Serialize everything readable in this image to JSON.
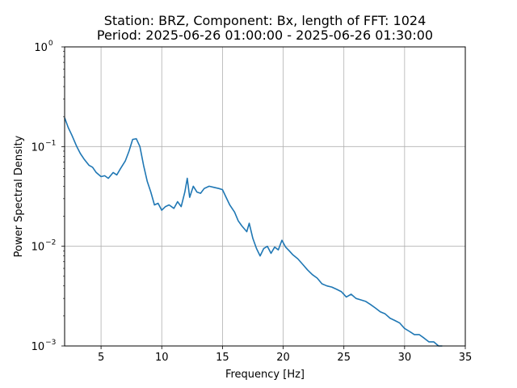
{
  "chart_data": {
    "type": "line",
    "title_line1": "Station: BRZ, Component: Bx, length of FFT: 1024",
    "title_line2": "Period: 2025-06-26 01:00:00 - 2025-06-26 01:30:00",
    "xlabel": "Frequency [Hz]",
    "ylabel": "Power Spectral Density",
    "xlim": [
      2,
      35
    ],
    "ylim": [
      0.001,
      1
    ],
    "yscale": "log",
    "grid": true,
    "x_ticks": [
      5,
      10,
      15,
      20,
      25,
      30,
      35
    ],
    "x_tick_labels": [
      "5",
      "10",
      "15",
      "20",
      "25",
      "30",
      "35"
    ],
    "y_ticks": [
      0.001,
      0.01,
      0.1,
      1
    ],
    "y_tick_bases": [
      "10",
      "10",
      "10",
      "10"
    ],
    "y_tick_exponents": [
      "−3",
      "−2",
      "−1",
      "0"
    ],
    "line_color": "#1f77b4",
    "series": [
      {
        "x": [
          2.0,
          2.3,
          2.6,
          3.0,
          3.3,
          3.6,
          4.0,
          4.3,
          4.6,
          5.0,
          5.3,
          5.6,
          6.0,
          6.3,
          6.6,
          7.0,
          7.3,
          7.6,
          7.9,
          8.2,
          8.5,
          8.8,
          9.1,
          9.4,
          9.7,
          10.0,
          10.3,
          10.6,
          11.0,
          11.3,
          11.6,
          11.9,
          12.1,
          12.3,
          12.6,
          12.9,
          13.2,
          13.5,
          13.9,
          14.3,
          14.7,
          15.0,
          15.3,
          15.6,
          16.0,
          16.3,
          16.6,
          17.0,
          17.2,
          17.5,
          17.8,
          18.1,
          18.4,
          18.7,
          19.0,
          19.3,
          19.6,
          19.9,
          20.2,
          20.5,
          20.8,
          21.2,
          21.6,
          22.0,
          22.4,
          22.8,
          23.2,
          23.6,
          24.0,
          24.4,
          24.8,
          25.2,
          25.6,
          26.0,
          26.4,
          26.8,
          27.2,
          27.6,
          28.0,
          28.4,
          28.8,
          29.2,
          29.6,
          30.0,
          30.4,
          30.8,
          31.2,
          31.6,
          32.0,
          32.4,
          32.8,
          33.1
        ],
        "y": [
          0.195,
          0.155,
          0.13,
          0.1,
          0.085,
          0.075,
          0.065,
          0.062,
          0.055,
          0.05,
          0.051,
          0.048,
          0.055,
          0.052,
          0.06,
          0.072,
          0.09,
          0.118,
          0.12,
          0.1,
          0.065,
          0.045,
          0.035,
          0.026,
          0.027,
          0.023,
          0.025,
          0.026,
          0.024,
          0.028,
          0.025,
          0.035,
          0.048,
          0.031,
          0.04,
          0.035,
          0.034,
          0.038,
          0.04,
          0.039,
          0.038,
          0.037,
          0.031,
          0.026,
          0.022,
          0.018,
          0.016,
          0.014,
          0.017,
          0.012,
          0.0095,
          0.008,
          0.0095,
          0.01,
          0.0085,
          0.0098,
          0.0092,
          0.0115,
          0.0098,
          0.009,
          0.0082,
          0.0075,
          0.0066,
          0.0058,
          0.0052,
          0.0048,
          0.0042,
          0.004,
          0.0039,
          0.0037,
          0.0035,
          0.0031,
          0.0033,
          0.003,
          0.0029,
          0.0028,
          0.0026,
          0.0024,
          0.0022,
          0.0021,
          0.0019,
          0.0018,
          0.0017,
          0.0015,
          0.0014,
          0.0013,
          0.0013,
          0.0012,
          0.0011,
          0.0011,
          0.001,
          0.001
        ]
      }
    ]
  }
}
